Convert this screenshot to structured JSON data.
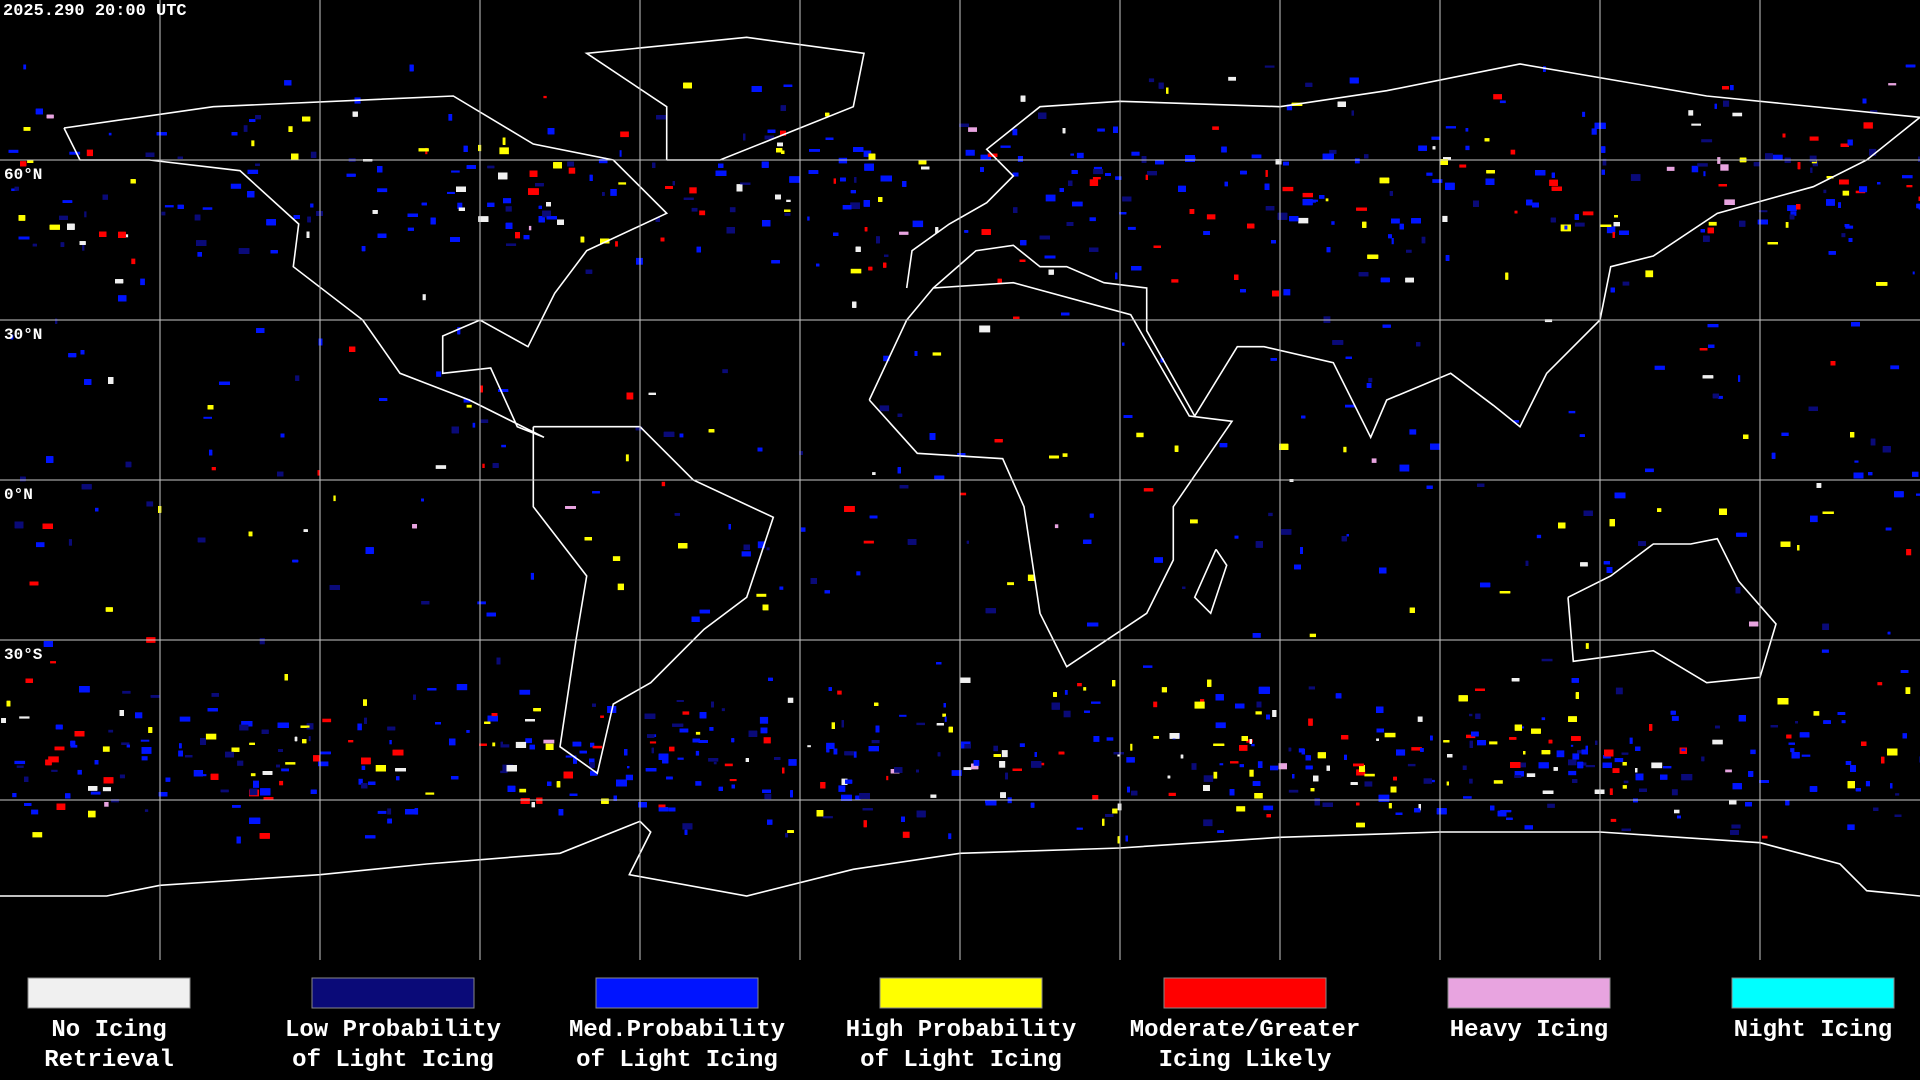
{
  "map": {
    "timestamp": "2025.290 20:00 UTC",
    "latitude_labels": [
      "60°N",
      "30°N",
      "0°N",
      "30°S"
    ]
  },
  "legend": [
    {
      "color": "#f0f0f0",
      "lines": [
        "No Icing",
        "Retrieval"
      ]
    },
    {
      "color": "#0a0a78",
      "lines": [
        "Low Probability",
        "of Light Icing"
      ]
    },
    {
      "color": "#0014ff",
      "lines": [
        "Med.Probability",
        "of Light Icing"
      ]
    },
    {
      "color": "#ffff00",
      "lines": [
        "High Probability",
        "of Light Icing"
      ]
    },
    {
      "color": "#ff0000",
      "lines": [
        "Moderate/Greater",
        "Icing Likely"
      ]
    },
    {
      "color": "#e8a4e0",
      "lines": [
        "Heavy Icing"
      ]
    },
    {
      "color": "#00ffff",
      "lines": [
        "Night Icing"
      ]
    }
  ]
}
